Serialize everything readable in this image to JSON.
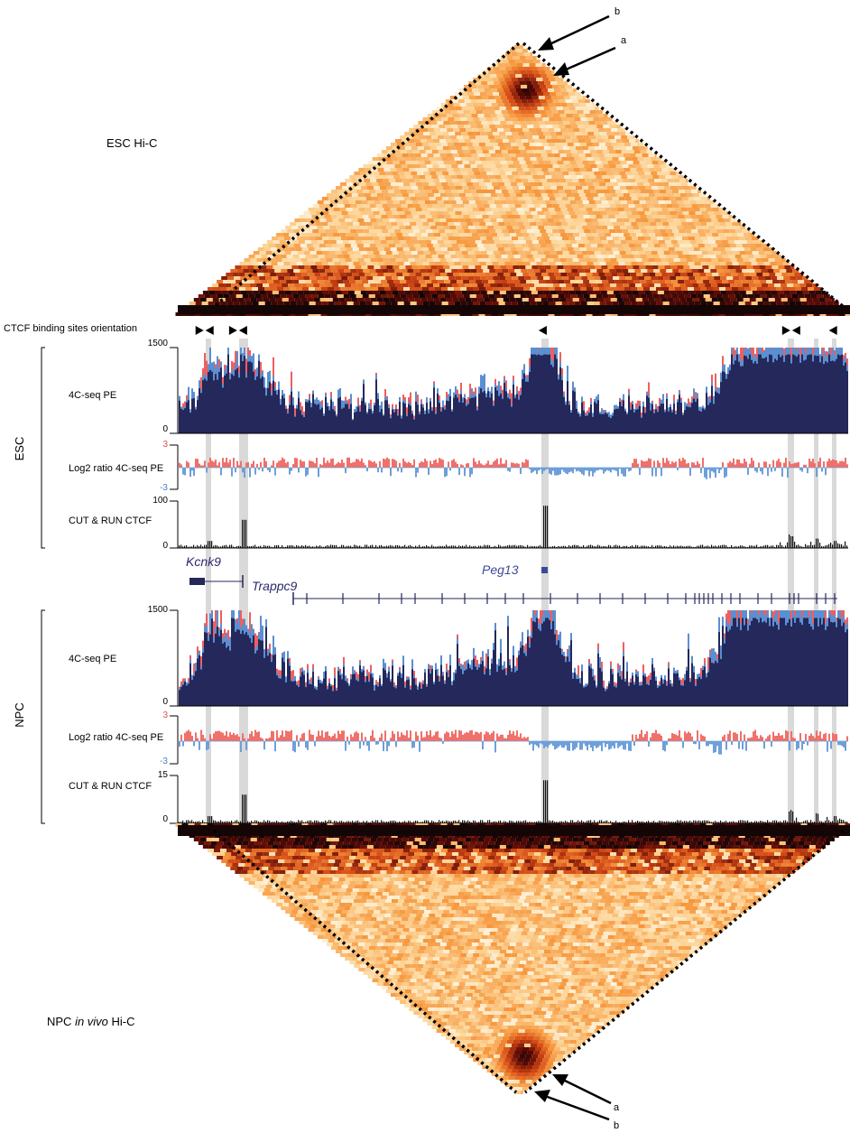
{
  "hic_top": {
    "label": "ESC Hi-C",
    "arrow_a": "a",
    "arrow_b": "b"
  },
  "hic_bottom": {
    "label_pre": "NPC ",
    "label_italic": "in vivo",
    "label_post": " Hi-C",
    "arrow_a": "a",
    "arrow_b": "b"
  },
  "ctcf_orientation_label": "CTCF binding sites orientation",
  "ctcf_orientation_marks": [
    {
      "pos": 0.04,
      "dir": "bowtie"
    },
    {
      "pos": 0.09,
      "dir": "bowtie"
    },
    {
      "pos": 0.545,
      "dir": "left"
    },
    {
      "pos": 0.915,
      "dir": "bowtie"
    },
    {
      "pos": 0.978,
      "dir": "left"
    }
  ],
  "groups": {
    "esc": "ESC",
    "npc": "NPC"
  },
  "tracks": {
    "esc_4c": {
      "label": "4C-seq PE",
      "ymax": "1500",
      "ymin": "0"
    },
    "esc_log2": {
      "label": "Log2 ratio 4C-seq PE",
      "ymax": "3",
      "ymin": "-3"
    },
    "esc_cutrun": {
      "label": "CUT & RUN CTCF",
      "ymax": "100",
      "ymin": "0"
    },
    "npc_4c": {
      "label": "4C-seq PE",
      "ymax": "1500",
      "ymin": "0"
    },
    "npc_log2": {
      "label": "Log2 ratio 4C-seq PE",
      "ymax": "3",
      "ymin": "-3"
    },
    "npc_cutrun": {
      "label": "CUT & RUN CTCF",
      "ymax": "15",
      "ymin": "0"
    }
  },
  "genes": {
    "kcnk9": "Kcnk9",
    "trappc9": "Trappc9",
    "peg13": "Peg13"
  },
  "colors": {
    "navy": "#24285a",
    "red_track": "#ee5f5f",
    "blue_track": "#5b8fd1",
    "log2_pos": "#f0706a",
    "log2_neg": "#6e9fd9",
    "highlight": "#d9d9d9",
    "hic_low": "#fff2dc",
    "hic_high": "#a52000"
  }
}
